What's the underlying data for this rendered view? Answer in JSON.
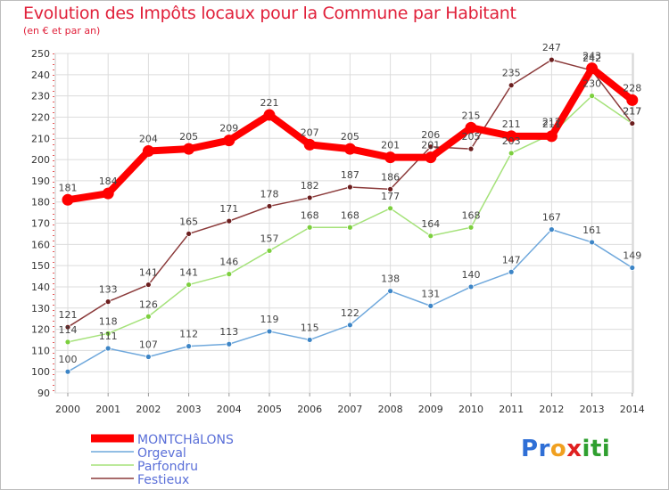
{
  "header": {
    "title": "Evolution des Impôts locaux pour la Commune par Habitant",
    "subtitle": "(en € et par an)"
  },
  "logo": {
    "letters": [
      "P",
      "r",
      "o",
      "x",
      "i",
      "t",
      "i"
    ],
    "colors": [
      "#2f6fd6",
      "#2f6fd6",
      "#f0a020",
      "#e02020",
      "#2f9f2f",
      "#2f9f2f",
      "#2f9f2f"
    ]
  },
  "chart_data": {
    "type": "line",
    "x": [
      "2000",
      "2001",
      "2002",
      "2003",
      "2004",
      "2005",
      "2006",
      "2007",
      "2008",
      "2009",
      "2010",
      "2011",
      "2012",
      "2013",
      "2014"
    ],
    "ylim": [
      90,
      250
    ],
    "yticks": [
      90,
      100,
      110,
      120,
      130,
      140,
      150,
      160,
      170,
      180,
      190,
      200,
      210,
      220,
      230,
      240,
      250
    ],
    "grid": true,
    "legend_position": "bottom-left",
    "series": [
      {
        "name": "MONTCHâLONS",
        "color": "#ff0000",
        "point_color": "#ff0000",
        "width": 8,
        "values": [
          181,
          184,
          204,
          205,
          209,
          221,
          207,
          205,
          201,
          201,
          215,
          211,
          211,
          243,
          228
        ]
      },
      {
        "name": "Orgeval",
        "color": "#6fa8dc",
        "point_color": "#3d85c6",
        "width": 1.5,
        "values": [
          100,
          111,
          107,
          112,
          113,
          119,
          115,
          122,
          138,
          131,
          140,
          147,
          167,
          161,
          149
        ]
      },
      {
        "name": "Parfondru",
        "color": "#a5e27a",
        "point_color": "#7ccf3e",
        "width": 1.5,
        "values": [
          114,
          118,
          126,
          141,
          146,
          157,
          168,
          168,
          177,
          164,
          168,
          203,
          212,
          230,
          217
        ]
      },
      {
        "name": "Festieux",
        "color": "#8b3a3a",
        "point_color": "#6b1e1e",
        "width": 1.5,
        "values": [
          121,
          133,
          141,
          165,
          171,
          178,
          182,
          187,
          186,
          206,
          205,
          235,
          247,
          242,
          217
        ]
      }
    ]
  }
}
